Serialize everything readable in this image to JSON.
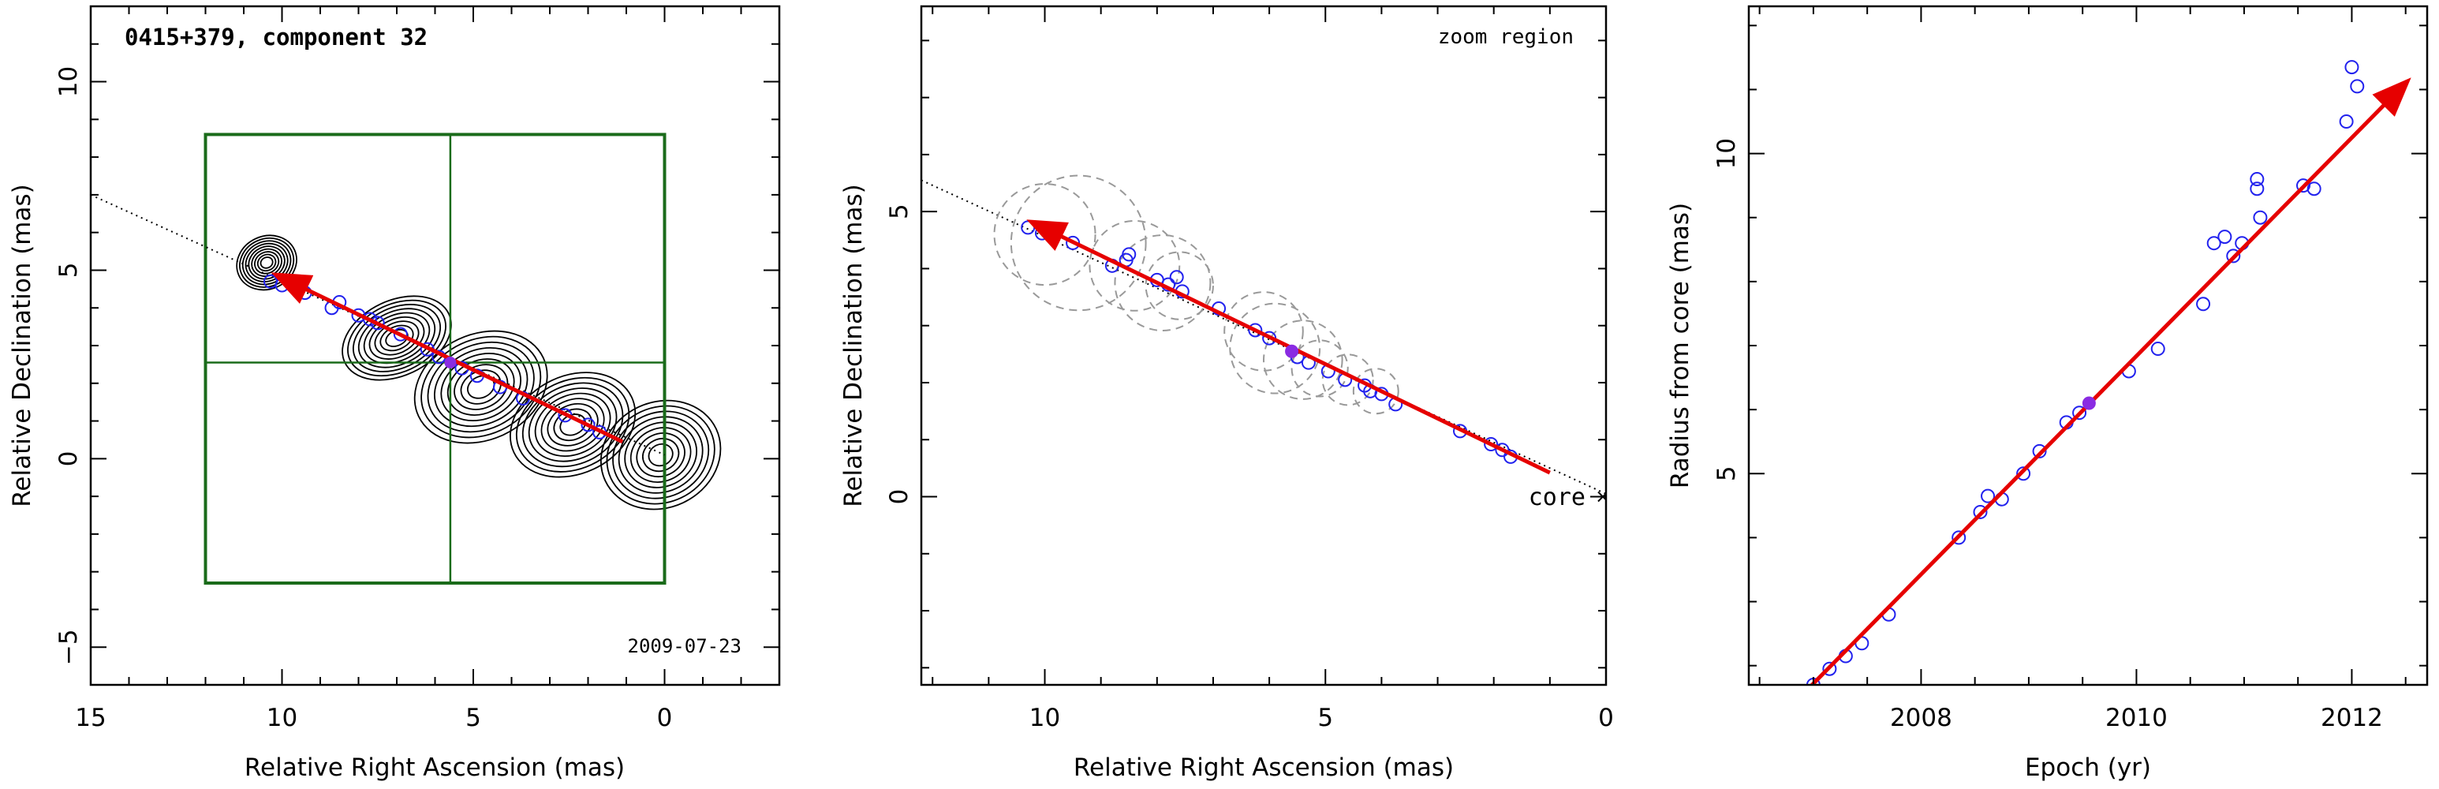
{
  "chart_data": [
    {
      "type": "contour",
      "title": "0415+379, component 32",
      "annotation": "2009-07-23",
      "xlabel": "Relative Right Ascension (mas)",
      "ylabel": "Relative Declination (mas)",
      "xlim": [
        15,
        -3
      ],
      "ylim": [
        -6,
        12
      ],
      "xticks": [
        15,
        10,
        5,
        0
      ],
      "yticks": [
        -5,
        0,
        5,
        10
      ],
      "zoom_box": {
        "ra": [
          12,
          0
        ],
        "dec": [
          -3.3,
          8.6
        ]
      },
      "crosshair": {
        "ra": 5.6,
        "dec": 2.55
      },
      "contour_peaks": [
        {
          "ra": 0.1,
          "dec": 0.1,
          "sx": 1.6,
          "sy": 1.4
        },
        {
          "ra": 2.4,
          "dec": 0.9,
          "sx": 1.7,
          "sy": 1.3
        },
        {
          "ra": 4.8,
          "dec": 1.9,
          "sx": 1.8,
          "sy": 1.4
        },
        {
          "ra": 7.0,
          "dec": 3.2,
          "sx": 1.5,
          "sy": 1.0
        },
        {
          "ra": 10.4,
          "dec": 5.2,
          "sx": 0.8,
          "sy": 0.7
        }
      ],
      "positions": [
        {
          "ra": 10.3,
          "dec": 4.7
        },
        {
          "ra": 10.0,
          "dec": 4.6
        },
        {
          "ra": 9.4,
          "dec": 4.4
        },
        {
          "ra": 8.7,
          "dec": 4.0
        },
        {
          "ra": 8.5,
          "dec": 4.15
        },
        {
          "ra": 8.0,
          "dec": 3.8
        },
        {
          "ra": 7.7,
          "dec": 3.7
        },
        {
          "ra": 7.5,
          "dec": 3.6
        },
        {
          "ra": 6.9,
          "dec": 3.3
        },
        {
          "ra": 6.2,
          "dec": 2.9
        },
        {
          "ra": 5.9,
          "dec": 2.7
        },
        {
          "ra": 5.3,
          "dec": 2.4
        },
        {
          "ra": 4.9,
          "dec": 2.2
        },
        {
          "ra": 4.3,
          "dec": 1.9
        },
        {
          "ra": 3.7,
          "dec": 1.6
        },
        {
          "ra": 2.6,
          "dec": 1.15
        },
        {
          "ra": 2.0,
          "dec": 0.9
        },
        {
          "ra": 1.7,
          "dec": 0.7
        }
      ],
      "highlight": {
        "ra": 5.6,
        "dec": 2.55
      },
      "arrow": {
        "from": {
          "ra": 1.1,
          "dec": 0.45
        },
        "to": {
          "ra": 10.1,
          "dec": 4.85
        }
      },
      "ridge_line": {
        "from": {
          "ra": 15,
          "dec": 7.0
        },
        "to": {
          "ra": 0,
          "dec": 0.1
        }
      }
    },
    {
      "type": "scatter",
      "annotation": "zoom region",
      "core_label": "core",
      "xlabel": "Relative Right Ascension (mas)",
      "ylabel": "Relative Declination (mas)",
      "xlim": [
        12.2,
        0
      ],
      "ylim": [
        -3.3,
        8.6
      ],
      "xticks": [
        10,
        5,
        0
      ],
      "yticks": [
        0,
        5
      ],
      "points": [
        {
          "ra": 10.3,
          "dec": 4.72
        },
        {
          "ra": 10.05,
          "dec": 4.62
        },
        {
          "ra": 9.5,
          "dec": 4.45
        },
        {
          "ra": 8.8,
          "dec": 4.05
        },
        {
          "ra": 8.55,
          "dec": 4.15
        },
        {
          "ra": 8.5,
          "dec": 4.25
        },
        {
          "ra": 8.0,
          "dec": 3.8
        },
        {
          "ra": 7.8,
          "dec": 3.72
        },
        {
          "ra": 7.65,
          "dec": 3.85
        },
        {
          "ra": 7.55,
          "dec": 3.6
        },
        {
          "ra": 6.9,
          "dec": 3.3
        },
        {
          "ra": 6.25,
          "dec": 2.92
        },
        {
          "ra": 6.0,
          "dec": 2.78
        },
        {
          "ra": 5.5,
          "dec": 2.45
        },
        {
          "ra": 5.3,
          "dec": 2.35
        },
        {
          "ra": 4.95,
          "dec": 2.2
        },
        {
          "ra": 4.65,
          "dec": 2.05
        },
        {
          "ra": 4.3,
          "dec": 1.95
        },
        {
          "ra": 4.2,
          "dec": 1.85
        },
        {
          "ra": 4.0,
          "dec": 1.8
        },
        {
          "ra": 3.75,
          "dec": 1.62
        },
        {
          "ra": 2.6,
          "dec": 1.15
        },
        {
          "ra": 2.05,
          "dec": 0.92
        },
        {
          "ra": 1.85,
          "dec": 0.82
        },
        {
          "ra": 1.7,
          "dec": 0.7
        }
      ],
      "highlight": {
        "ra": 5.6,
        "dec": 2.55
      },
      "uncertainty_circles": [
        {
          "ra": 10.0,
          "dec": 4.6,
          "r": 0.9
        },
        {
          "ra": 9.4,
          "dec": 4.45,
          "r": 1.2
        },
        {
          "ra": 8.4,
          "dec": 4.05,
          "r": 0.8
        },
        {
          "ra": 7.9,
          "dec": 3.75,
          "r": 0.85
        },
        {
          "ra": 7.6,
          "dec": 3.7,
          "r": 0.6
        },
        {
          "ra": 6.1,
          "dec": 2.9,
          "r": 0.7
        },
        {
          "ra": 5.9,
          "dec": 2.6,
          "r": 0.8
        },
        {
          "ra": 5.4,
          "dec": 2.4,
          "r": 0.7
        },
        {
          "ra": 5.1,
          "dec": 2.25,
          "r": 0.5
        },
        {
          "ra": 4.6,
          "dec": 2.05,
          "r": 0.45
        },
        {
          "ra": 4.1,
          "dec": 1.85,
          "r": 0.4
        }
      ],
      "arrow": {
        "from": {
          "ra": 1.0,
          "dec": 0.42
        },
        "to": {
          "ra": 10.2,
          "dec": 4.8
        }
      },
      "ridge_line": {
        "from": {
          "ra": 12.2,
          "dec": 5.55
        },
        "to": {
          "ra": 0,
          "dec": 0.05
        }
      }
    },
    {
      "type": "scatter",
      "xlabel": "Epoch (yr)",
      "ylabel": "Radius from core (mas)",
      "xlim": [
        2006.4,
        2012.7
      ],
      "ylim": [
        1.7,
        12.3
      ],
      "xticks": [
        2008,
        2010,
        2012
      ],
      "yticks": [
        5,
        10
      ],
      "points": [
        {
          "x": 2007.0,
          "y": 1.7
        },
        {
          "x": 2007.15,
          "y": 1.95
        },
        {
          "x": 2007.3,
          "y": 2.15
        },
        {
          "x": 2007.45,
          "y": 2.35
        },
        {
          "x": 2007.7,
          "y": 2.8
        },
        {
          "x": 2008.35,
          "y": 4.0
        },
        {
          "x": 2008.55,
          "y": 4.4
        },
        {
          "x": 2008.62,
          "y": 4.65
        },
        {
          "x": 2008.75,
          "y": 4.6
        },
        {
          "x": 2008.95,
          "y": 5.0
        },
        {
          "x": 2009.1,
          "y": 5.35
        },
        {
          "x": 2009.35,
          "y": 5.8
        },
        {
          "x": 2009.47,
          "y": 5.95
        },
        {
          "x": 2009.93,
          "y": 6.6
        },
        {
          "x": 2010.2,
          "y": 6.95
        },
        {
          "x": 2010.62,
          "y": 7.65
        },
        {
          "x": 2010.72,
          "y": 8.6
        },
        {
          "x": 2010.82,
          "y": 8.7
        },
        {
          "x": 2010.9,
          "y": 8.4
        },
        {
          "x": 2010.98,
          "y": 8.6
        },
        {
          "x": 2011.12,
          "y": 9.45
        },
        {
          "x": 2011.12,
          "y": 9.6
        },
        {
          "x": 2011.15,
          "y": 9.0
        },
        {
          "x": 2011.55,
          "y": 9.5
        },
        {
          "x": 2011.65,
          "y": 9.45
        },
        {
          "x": 2011.95,
          "y": 10.5
        },
        {
          "x": 2012.0,
          "y": 11.35
        },
        {
          "x": 2012.05,
          "y": 11.05
        }
      ],
      "highlight": {
        "x": 2009.56,
        "y": 6.1
      },
      "fit_arrow": {
        "from": {
          "x": 2006.9,
          "y": 1.55
        },
        "to": {
          "x": 2012.5,
          "y": 11.1
        }
      }
    }
  ]
}
